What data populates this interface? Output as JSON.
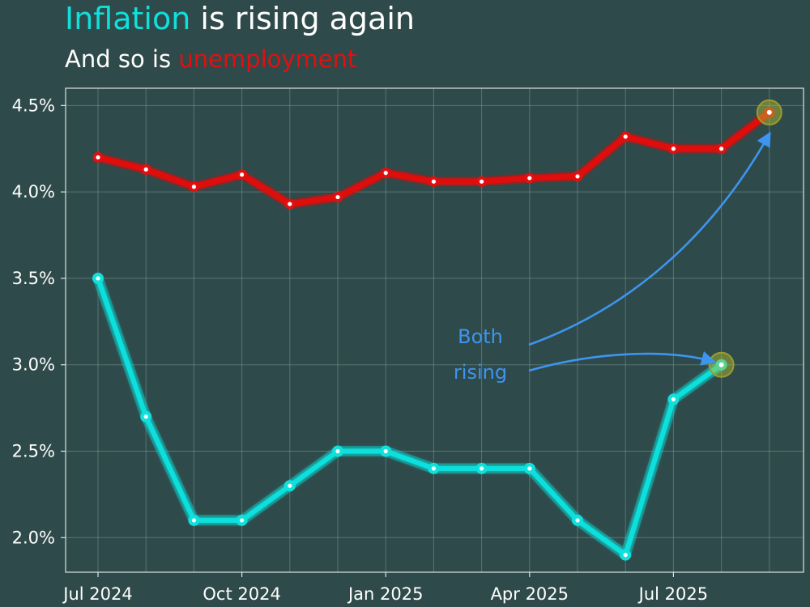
{
  "header": {
    "title_highlight": "Inflation",
    "title_rest": " is rising again",
    "subtitle_lead": "And so is ",
    "subtitle_highlight": "unemployment"
  },
  "colors": {
    "background": "#2f4a4a",
    "inflation": "#10e0dc",
    "unemployment": "#e01010",
    "annotation": "#3d95f0",
    "highlight_ring": "#b8c030"
  },
  "chart_data": {
    "type": "line",
    "ylim": [
      1.8,
      4.6
    ],
    "y_ticks": [
      2.0,
      2.5,
      3.0,
      3.5,
      4.0,
      4.5
    ],
    "y_tick_labels": [
      "2.0%",
      "2.5%",
      "3.0%",
      "3.5%",
      "4.0%",
      "4.5%"
    ],
    "x_ticks": [
      "2024-07",
      "2024-10",
      "2025-01",
      "2025-04",
      "2025-07"
    ],
    "x_tick_labels": [
      "Jul 2024",
      "Oct 2024",
      "Jan 2025",
      "Apr 2025",
      "Jul 2025"
    ],
    "grid": true,
    "series": [
      {
        "name": "unemployment",
        "color": "#e01010",
        "x": [
          "2024-07",
          "2024-08",
          "2024-09",
          "2024-10",
          "2024-11",
          "2024-12",
          "2025-01",
          "2025-02",
          "2025-03",
          "2025-04",
          "2025-05",
          "2025-06",
          "2025-07",
          "2025-08",
          "2025-09"
        ],
        "values": [
          4.2,
          4.13,
          4.03,
          4.1,
          3.93,
          3.97,
          4.11,
          4.06,
          4.06,
          4.08,
          4.09,
          4.32,
          4.25,
          4.25,
          4.46
        ]
      },
      {
        "name": "Inflation",
        "color": "#10e0dc",
        "x": [
          "2024-07",
          "2024-08",
          "2024-09",
          "2024-10",
          "2024-11",
          "2024-12",
          "2025-01",
          "2025-02",
          "2025-03",
          "2025-04",
          "2025-05",
          "2025-06",
          "2025-07",
          "2025-08"
        ],
        "values": [
          3.5,
          2.7,
          2.1,
          2.1,
          2.3,
          2.5,
          2.5,
          2.4,
          2.4,
          2.4,
          2.1,
          1.9,
          2.8,
          3.0
        ]
      }
    ],
    "highlighted_points": [
      {
        "series": "unemployment",
        "x": "2025-09",
        "y": 4.46
      },
      {
        "series": "Inflation",
        "x": "2025-08",
        "y": 3.0
      }
    ],
    "annotation": {
      "lines": [
        "Both",
        "rising"
      ],
      "arrows_to": [
        {
          "x": "2025-09",
          "y": 4.4
        },
        {
          "x": "2025-08",
          "y": 3.0
        }
      ]
    }
  }
}
